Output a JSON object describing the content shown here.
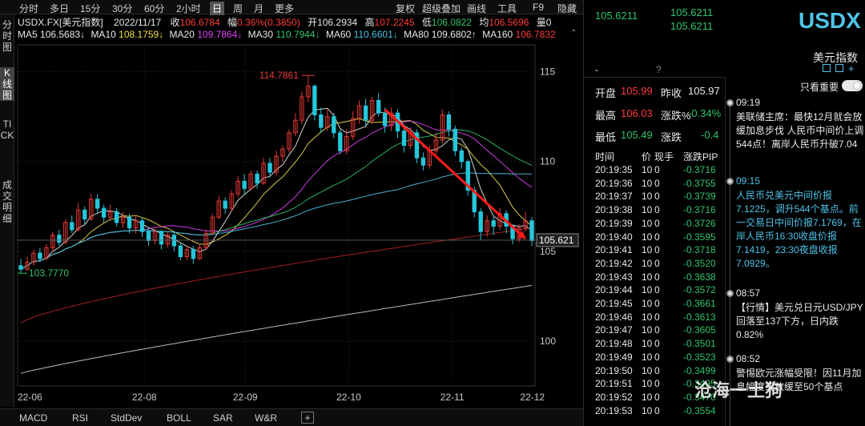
{
  "toolbar": {
    "periods": [
      "分时",
      "多日",
      "15分",
      "30分",
      "60分",
      "2小时",
      "日",
      "周",
      "月",
      "更多"
    ],
    "active_period": "日",
    "right_items": [
      "复权",
      "超级叠加",
      "画线",
      "工具",
      "F9",
      "隐藏"
    ]
  },
  "left_tabs": [
    "分时图",
    "K线图",
    "TICK",
    "成交明细"
  ],
  "info_line": {
    "symbol": "USDX.FX[美元指数]",
    "date": "2022/11/17",
    "close_label": "收",
    "close": "106.6784",
    "change_label": "幅",
    "change": "0.36%(0.3850)",
    "open_label": "开",
    "open": "106.2934",
    "high_label": "高",
    "high": "107.2245",
    "low_label": "低",
    "low": "106.0822",
    "avg_label": "均",
    "avg": "106.5696",
    "vol_label": "量",
    "vol": "0"
  },
  "ma_line": [
    {
      "label": "MA5",
      "value": "106.5683↓",
      "color": "#e8e8e8"
    },
    {
      "label": "MA10",
      "value": "108.1759↓",
      "color": "#f2e14a"
    },
    {
      "label": "MA20",
      "value": "109.7864↓",
      "color": "#e040fb"
    },
    {
      "label": "MA30",
      "value": "110.7944↓",
      "color": "#31c46c"
    },
    {
      "label": "MA60",
      "value": "110.6601↓",
      "color": "#4fc3e8"
    },
    {
      "label": "MA80",
      "value": "109.6802↑",
      "color": "#e8e8e8"
    },
    {
      "label": "MA160",
      "value": "106.7832",
      "color": "#ff3b3b"
    }
  ],
  "chart_data": {
    "type": "candlestick",
    "y_ticks": [
      "115",
      "110",
      "105",
      "100"
    ],
    "ylim": [
      97.5,
      116.5
    ],
    "x_ticks": [
      "22-06",
      "22-08",
      "22-09",
      "22-10",
      "22-11",
      "22-12"
    ],
    "annotations": {
      "max_label": "114.7861",
      "min_label": "103.7770",
      "last_label": "105.621"
    },
    "last_price": 105.621,
    "candles": [
      [
        104.2,
        104.0,
        104.6,
        103.8
      ],
      [
        104.0,
        104.4,
        104.7,
        103.9
      ],
      [
        104.4,
        104.9,
        105.1,
        104.2
      ],
      [
        104.9,
        104.6,
        105.2,
        104.4
      ],
      [
        104.6,
        105.2,
        105.4,
        104.5
      ],
      [
        105.2,
        105.9,
        106.1,
        105.0
      ],
      [
        105.9,
        105.5,
        106.2,
        105.3
      ],
      [
        105.5,
        106.6,
        106.8,
        105.4
      ],
      [
        106.6,
        106.2,
        107.0,
        106.0
      ],
      [
        106.2,
        107.3,
        107.7,
        106.1
      ],
      [
        107.3,
        106.8,
        107.5,
        106.5
      ],
      [
        106.8,
        107.9,
        108.2,
        106.7
      ],
      [
        107.9,
        107.4,
        108.2,
        107.1
      ],
      [
        107.4,
        106.9,
        107.6,
        106.6
      ],
      [
        106.9,
        107.2,
        107.6,
        106.7
      ],
      [
        107.2,
        106.6,
        107.4,
        106.4
      ],
      [
        106.6,
        106.9,
        107.2,
        106.3
      ],
      [
        106.9,
        106.3,
        107.1,
        106.0
      ],
      [
        106.3,
        106.7,
        107.0,
        106.0
      ],
      [
        106.7,
        106.1,
        106.9,
        105.8
      ],
      [
        106.1,
        105.6,
        106.3,
        105.3
      ],
      [
        105.6,
        106.1,
        106.3,
        105.4
      ],
      [
        106.1,
        105.4,
        106.2,
        105.1
      ],
      [
        105.4,
        105.9,
        106.1,
        105.2
      ],
      [
        105.9,
        105.3,
        106.1,
        105.0
      ],
      [
        105.3,
        104.7,
        105.5,
        104.5
      ],
      [
        104.7,
        105.1,
        105.3,
        104.5
      ],
      [
        105.1,
        104.6,
        105.3,
        104.3
      ],
      [
        104.6,
        105.2,
        105.4,
        104.5
      ],
      [
        105.2,
        106.0,
        106.2,
        105.1
      ],
      [
        106.0,
        106.9,
        107.1,
        105.9
      ],
      [
        106.9,
        107.8,
        108.1,
        106.8
      ],
      [
        107.8,
        107.4,
        108.0,
        107.1
      ],
      [
        107.4,
        108.2,
        108.4,
        107.2
      ],
      [
        108.2,
        108.9,
        109.2,
        108.0
      ],
      [
        108.9,
        108.5,
        109.3,
        108.2
      ],
      [
        108.5,
        109.3,
        109.5,
        108.4
      ],
      [
        109.3,
        108.8,
        109.5,
        108.5
      ],
      [
        108.8,
        109.9,
        110.2,
        108.7
      ],
      [
        109.9,
        109.4,
        110.2,
        109.1
      ],
      [
        109.4,
        110.3,
        110.6,
        109.2
      ],
      [
        110.3,
        110.7,
        110.9,
        110.0
      ],
      [
        110.7,
        111.6,
        111.8,
        110.5
      ],
      [
        111.6,
        112.3,
        112.7,
        111.4
      ],
      [
        112.3,
        113.6,
        113.9,
        112.1
      ],
      [
        113.6,
        114.2,
        114.8,
        113.3
      ],
      [
        114.2,
        112.6,
        114.3,
        112.3
      ],
      [
        112.6,
        111.9,
        113.0,
        111.6
      ],
      [
        111.9,
        112.5,
        112.9,
        111.7
      ],
      [
        112.5,
        111.6,
        112.7,
        111.3
      ],
      [
        111.6,
        110.6,
        111.8,
        110.4
      ],
      [
        110.6,
        111.4,
        111.8,
        110.4
      ],
      [
        111.4,
        112.4,
        112.8,
        111.2
      ],
      [
        112.4,
        113.1,
        113.4,
        112.1
      ],
      [
        113.1,
        112.3,
        113.5,
        112.0
      ],
      [
        112.3,
        113.4,
        113.6,
        112.1
      ],
      [
        113.4,
        112.7,
        113.8,
        112.5
      ],
      [
        112.7,
        112.0,
        113.0,
        111.6
      ],
      [
        112.0,
        112.7,
        113.0,
        111.7
      ],
      [
        112.7,
        111.7,
        112.9,
        111.3
      ],
      [
        111.7,
        110.9,
        112.0,
        110.5
      ],
      [
        110.9,
        111.6,
        111.9,
        110.7
      ],
      [
        111.6,
        110.2,
        111.8,
        109.9
      ],
      [
        110.2,
        109.8,
        110.5,
        109.5
      ],
      [
        109.8,
        110.6,
        110.9,
        109.6
      ],
      [
        110.6,
        111.2,
        111.6,
        110.4
      ],
      [
        111.2,
        112.6,
        112.9,
        111.0
      ],
      [
        112.6,
        111.8,
        112.8,
        111.4
      ],
      [
        111.8,
        110.6,
        112.0,
        110.3
      ],
      [
        110.6,
        110.0,
        110.8,
        109.6
      ],
      [
        110.0,
        108.4,
        110.1,
        108.1
      ],
      [
        108.4,
        107.2,
        108.6,
        106.9
      ],
      [
        107.2,
        106.1,
        107.4,
        105.6
      ],
      [
        106.1,
        106.7,
        107.0,
        105.8
      ],
      [
        106.7,
        106.4,
        106.9,
        105.9
      ],
      [
        106.4,
        107.1,
        107.4,
        106.2
      ],
      [
        107.1,
        106.4,
        107.3,
        106.0
      ],
      [
        106.4,
        105.7,
        106.5,
        105.4
      ],
      [
        105.7,
        106.3,
        106.5,
        105.5
      ],
      [
        106.3,
        106.7,
        107.2,
        106.1
      ],
      [
        106.7,
        105.6,
        106.9,
        105.3
      ]
    ]
  },
  "bottom_tabs": [
    "MACD",
    "RSI",
    "StdDev",
    "BOLL",
    "SAR",
    "W&R"
  ],
  "right": {
    "price_top_left": "105.6211",
    "price_top_mid": "105.6211",
    "price_top_mid2": "105.6211",
    "title": "USDX",
    "name": "美元指数",
    "dash": "-",
    "question": "?",
    "open_label": "开盘",
    "open": "105.99",
    "prev_label": "昨收",
    "prev": "105.97",
    "high_label": "最高",
    "high": "106.03",
    "chg_pct_label": "涨跌%",
    "chg_pct": "-0.34%",
    "low_label": "最低",
    "low": "105.49",
    "chg_label": "涨跌",
    "chg": "-0.4",
    "tick_headers": [
      "时间",
      "价",
      "现手",
      "涨跌PIP"
    ],
    "ticks": [
      [
        "20:19:35",
        "10",
        "0",
        "-0.3716"
      ],
      [
        "20:19:36",
        "10",
        "0",
        "-0.3755"
      ],
      [
        "20:19:37",
        "10",
        "0",
        "-0.3739"
      ],
      [
        "20:19:38",
        "10",
        "0",
        "-0.3716"
      ],
      [
        "20:19:39",
        "10",
        "0",
        "-0.3726"
      ],
      [
        "20:19:40",
        "10",
        "0",
        "-0.3595"
      ],
      [
        "20:19:41",
        "10",
        "0",
        "-0.3718"
      ],
      [
        "20:19:42",
        "10",
        "0",
        "-0.3520"
      ],
      [
        "20:19:43",
        "10",
        "0",
        "-0.3638"
      ],
      [
        "20:19:44",
        "10",
        "0",
        "-0.3572"
      ],
      [
        "20:19:45",
        "10",
        "0",
        "-0.3661"
      ],
      [
        "20:19:46",
        "10",
        "0",
        "-0.3613"
      ],
      [
        "20:19:47",
        "10",
        "0",
        "-0.3605"
      ],
      [
        "20:19:48",
        "10",
        "0",
        "-0.3501"
      ],
      [
        "20:19:49",
        "10",
        "0",
        "-0.3523"
      ],
      [
        "20:19:50",
        "10",
        "0",
        "-0.3499"
      ],
      [
        "20:19:51",
        "10",
        "0",
        "-0.3495"
      ],
      [
        "20:19:52",
        "10",
        "0",
        "-0.3470"
      ],
      [
        "20:19:53",
        "10",
        "0",
        "-0.3554"
      ]
    ],
    "only_important": "只看重要",
    "news": [
      {
        "time": "09:19",
        "text": "美联储主席：最快12月就会放缓加息步伐 人民币中间价上调544点！离岸人民币升破7.04",
        "style": "white"
      },
      {
        "time": "09:15",
        "text": "人民币兑美元中间价报7.1225，调升544个基点。前一交易日中间价报7.1769，在岸人民币16:30收盘价报7.1419，23:30夜盘收报7.0929。",
        "style": "cyan"
      },
      {
        "time": "08:57",
        "text": "【行情】美元兑日元USD/JPY回落至137下方，日内跌0.82%",
        "style": "white"
      },
      {
        "time": "08:52",
        "text": "警惕欧元涨幅受限！因11月加息幅度或放缓至50个基点",
        "style": "white"
      }
    ],
    "watermark": "沧海一土狗"
  }
}
